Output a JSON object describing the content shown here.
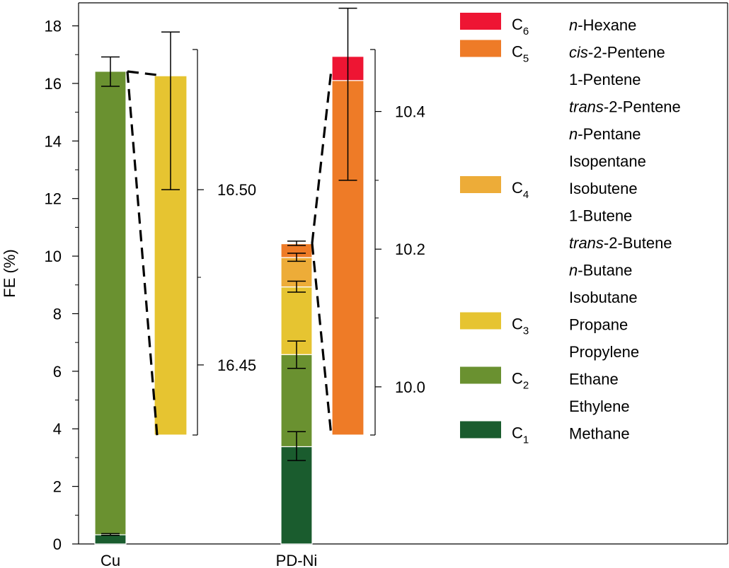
{
  "chart_data": {
    "type": "bar",
    "stacked": true,
    "ylabel": "FE (%)",
    "ylim": [
      0,
      18.8
    ],
    "yticks": [
      "0",
      "2",
      "4",
      "6",
      "8",
      "10",
      "12",
      "14",
      "16",
      "18"
    ],
    "grid": false,
    "categories": [
      "Cu",
      "PD-Ni"
    ],
    "colors": {
      "C1": "#1a5c2e",
      "C2": "#6a9130",
      "C3": "#e6c431",
      "C4": "#edac38",
      "C5": "#ee7b27",
      "C6": "#ee1533"
    },
    "bars": [
      {
        "name": "Cu",
        "segments": [
          {
            "key": "C1",
            "from": 0,
            "to": 0.32
          },
          {
            "key": "C2",
            "from": 0.32,
            "to": 16.42
          }
        ],
        "error_bars": [
          {
            "value": 0.32,
            "low": 0.3,
            "high": 0.36
          },
          {
            "value": 16.42,
            "low": 15.9,
            "high": 16.92
          }
        ]
      },
      {
        "name": "PD-Ni",
        "segments": [
          {
            "key": "C1",
            "from": 0,
            "to": 3.38
          },
          {
            "key": "C2",
            "from": 3.38,
            "to": 6.58
          },
          {
            "key": "C3",
            "from": 6.58,
            "to": 8.93
          },
          {
            "key": "C4",
            "from": 8.93,
            "to": 9.95
          },
          {
            "key": "C5",
            "from": 9.95,
            "to": 10.43
          }
        ],
        "error_bars": [
          {
            "value": 3.38,
            "low": 2.9,
            "high": 3.9
          },
          {
            "value": 6.58,
            "low": 6.1,
            "high": 7.05
          },
          {
            "value": 8.93,
            "low": 8.75,
            "high": 9.13
          },
          {
            "value": 9.95,
            "low": 9.82,
            "high": 10.1
          },
          {
            "value": 10.43,
            "low": 10.37,
            "high": 10.52
          }
        ]
      }
    ],
    "insets": [
      {
        "parent": "Cu",
        "ylim": [
          16.43,
          16.54
        ],
        "ticks": [
          {
            "value": 16.45,
            "label": "16.45"
          },
          {
            "value": 16.5,
            "label": "16.50"
          }
        ],
        "minor_ticks": [
          16.475
        ],
        "segments": [
          {
            "key": "C3",
            "from": 16.43,
            "to": 16.5325
          }
        ],
        "error_bars": [
          {
            "value": 16.5325,
            "low": 16.5,
            "high": 16.545
          }
        ]
      },
      {
        "parent": "PD-Ni",
        "ylim": [
          9.93,
          10.49
        ],
        "ticks": [
          {
            "value": 10.0,
            "label": "10.0"
          },
          {
            "value": 10.2,
            "label": "10.2"
          },
          {
            "value": 10.4,
            "label": "10.4"
          }
        ],
        "minor_ticks": [
          10.1,
          10.3
        ],
        "segments": [
          {
            "key": "C5",
            "from": 9.93,
            "to": 10.445
          },
          {
            "key": "C6",
            "from": 10.445,
            "to": 10.48
          }
        ],
        "error_bars": [
          {
            "value": 10.48,
            "low": 10.3,
            "high": 10.55
          }
        ]
      }
    ],
    "legend": {
      "placement": "right",
      "groups": [
        {
          "key": "C6",
          "label": "C",
          "sub": "6",
          "items": [
            {
              "prefix": "",
              "italic": "n",
              "rest": "-Hexane"
            }
          ]
        },
        {
          "key": "C5",
          "label": "C",
          "sub": "5",
          "items": [
            {
              "prefix": "",
              "italic": "cis",
              "rest": "-2-Pentene"
            },
            {
              "prefix": "1-Pentene",
              "italic": "",
              "rest": ""
            },
            {
              "prefix": "",
              "italic": "trans",
              "rest": "-2-Pentene"
            },
            {
              "prefix": "",
              "italic": "n",
              "rest": "-Pentane"
            },
            {
              "prefix": "Isopentane",
              "italic": "",
              "rest": ""
            }
          ]
        },
        {
          "key": "C4",
          "label": "C",
          "sub": "4",
          "items": [
            {
              "prefix": "Isobutene",
              "italic": "",
              "rest": ""
            },
            {
              "prefix": "1-Butene",
              "italic": "",
              "rest": ""
            },
            {
              "prefix": "",
              "italic": "trans",
              "rest": "-2-Butene"
            },
            {
              "prefix": "",
              "italic": "n",
              "rest": "-Butane"
            },
            {
              "prefix": "Isobutane",
              "italic": "",
              "rest": ""
            }
          ]
        },
        {
          "key": "C3",
          "label": "C",
          "sub": "3",
          "items": [
            {
              "prefix": "Propane",
              "italic": "",
              "rest": ""
            },
            {
              "prefix": "Propylene",
              "italic": "",
              "rest": ""
            }
          ]
        },
        {
          "key": "C2",
          "label": "C",
          "sub": "2",
          "items": [
            {
              "prefix": "Ethane",
              "italic": "",
              "rest": ""
            },
            {
              "prefix": "Ethylene",
              "italic": "",
              "rest": ""
            }
          ]
        },
        {
          "key": "C1",
          "label": "C",
          "sub": "1",
          "items": [
            {
              "prefix": "Methane",
              "italic": "",
              "rest": ""
            }
          ]
        }
      ]
    }
  }
}
